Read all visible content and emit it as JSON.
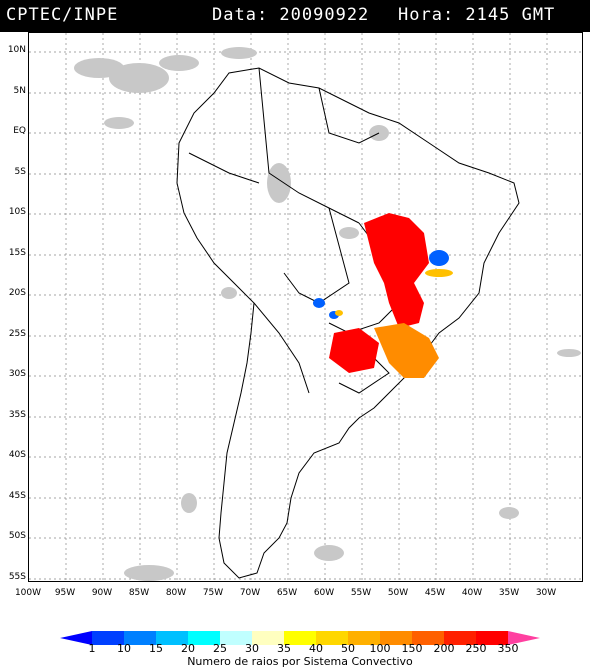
{
  "header": {
    "agency": "CPTEC/INPE",
    "date_text": "Data: 20090922",
    "time_text": "Hora: 2145 GMT"
  },
  "latitudes": [
    "10N",
    "5N",
    "EQ",
    "5S",
    "10S",
    "15S",
    "20S",
    "25S",
    "30S",
    "35S",
    "40S",
    "45S",
    "50S",
    "55S"
  ],
  "longitudes": [
    "100W",
    "95W",
    "90W",
    "85W",
    "80W",
    "75W",
    "70W",
    "65W",
    "60W",
    "55W",
    "50W",
    "45W",
    "40W",
    "35W",
    "30W"
  ],
  "legend": {
    "caption": "Numero de raios por Sistema Convectivo",
    "labels": [
      "1",
      "10",
      "15",
      "20",
      "25",
      "30",
      "35",
      "40",
      "50",
      "100",
      "150",
      "200",
      "250",
      "350"
    ],
    "colors": [
      "#0000ff",
      "#0040ff",
      "#0080ff",
      "#00c0ff",
      "#00ffff",
      "#c0ffff",
      "#ffffc0",
      "#ffff00",
      "#ffd700",
      "#ffb000",
      "#ff8c00",
      "#ff6000",
      "#ff2000",
      "#ff0000",
      "#ff40a0"
    ]
  },
  "colors": {
    "cloud": "#c8c8c8",
    "high": "#ff0000",
    "mid": "#ff8c00",
    "low": "#ffc000",
    "blue": "#0060ff"
  }
}
